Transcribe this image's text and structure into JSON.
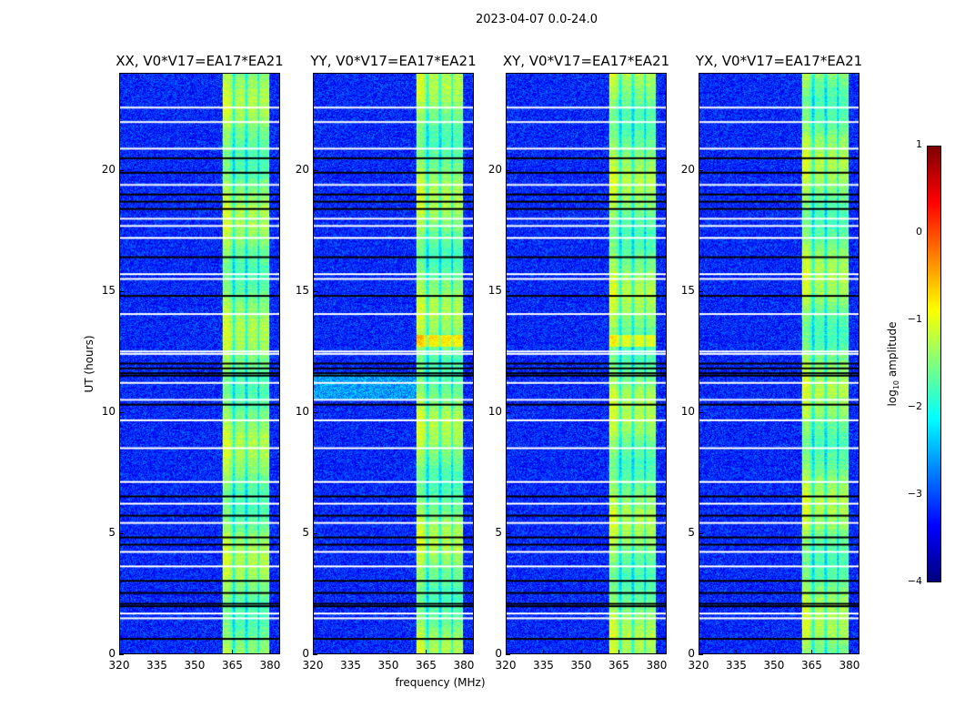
{
  "suptitle": "2023-04-07 0.0-24.0",
  "chart_data": {
    "type": "heatmap",
    "title": "2023-04-07 0.0-24.0",
    "xlabel": "frequency (MHz)",
    "ylabel": "UT (hours)",
    "xlim": [
      320,
      384
    ],
    "ylim": [
      0,
      24
    ],
    "xticks": [
      320,
      335,
      350,
      365,
      380
    ],
    "yticks": [
      0,
      5,
      10,
      15,
      20
    ],
    "panels": [
      {
        "title": "XX, V0*V17=EA17*EA21"
      },
      {
        "title": "YY, V0*V17=EA17*EA21"
      },
      {
        "title": "XY, V0*V17=EA17*EA21"
      },
      {
        "title": "YX, V0*V17=EA17*EA21"
      }
    ],
    "band_MHz": [
      361,
      380
    ],
    "background_log_amp": -3.2,
    "band_log_amp": -1.5,
    "flagged_ut_hours_white": [
      22.6,
      22.0,
      20.9,
      19.4,
      18.0,
      17.7,
      17.2,
      15.7,
      15.5,
      14.05,
      12.5,
      12.4,
      11.2,
      10.5,
      9.65,
      8.5,
      7.1,
      6.2,
      5.4,
      4.2,
      3.6,
      1.65,
      1.45
    ],
    "missing_ut_hours_black": [
      20.5,
      19.9,
      19.0,
      18.7,
      18.4,
      16.4,
      14.8,
      12.0,
      11.8,
      11.6,
      11.5,
      10.3,
      6.5,
      5.7,
      4.8,
      4.5,
      3.0,
      2.5,
      2.05,
      1.95,
      0.6
    ],
    "colorbar": {
      "label": "log10 amplitude",
      "label_main": "log",
      "label_sub": "10",
      "label_rest": " amplitude",
      "range": [
        -4,
        1
      ],
      "ticks": [
        "1",
        "0",
        "−1",
        "−2",
        "−3",
        "−4"
      ],
      "tick_values": [
        1,
        0,
        -1,
        -2,
        -3,
        -4
      ],
      "colormap": "jet"
    }
  }
}
